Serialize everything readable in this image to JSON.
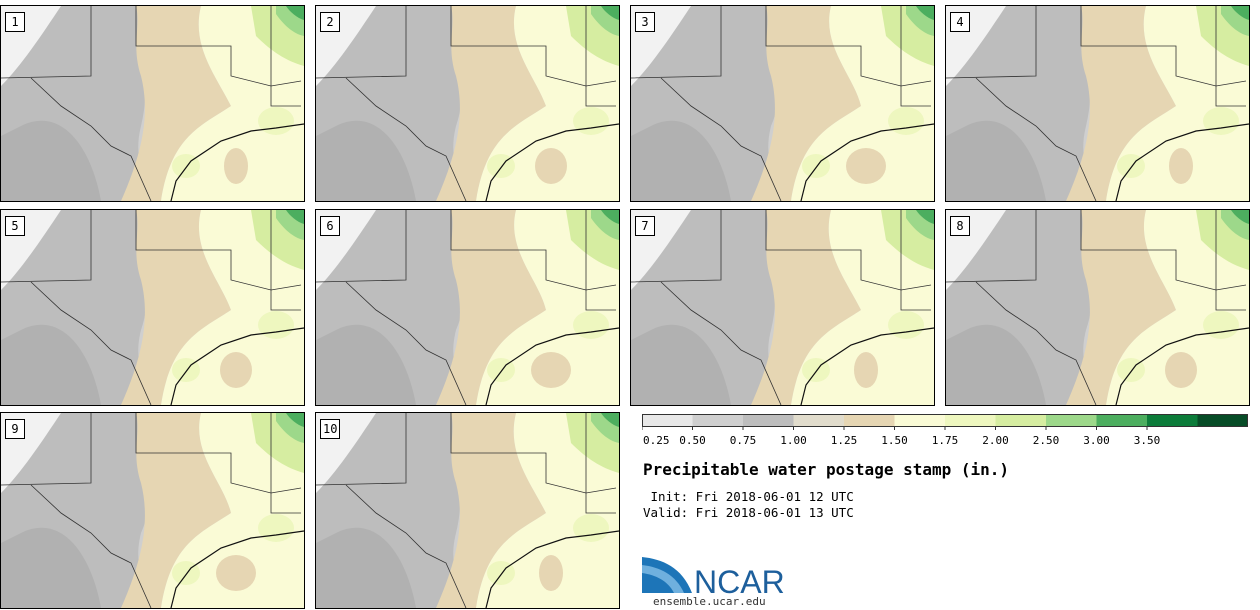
{
  "panels": [
    {
      "label": "1"
    },
    {
      "label": "2"
    },
    {
      "label": "3"
    },
    {
      "label": "4"
    },
    {
      "label": "5"
    },
    {
      "label": "6"
    },
    {
      "label": "7"
    },
    {
      "label": "8"
    },
    {
      "label": "9"
    },
    {
      "label": "10"
    }
  ],
  "legend": {
    "ticks": [
      "0.25",
      "0.50",
      "0.75",
      "1.00",
      "1.25",
      "1.50",
      "1.75",
      "2.00",
      "2.50",
      "3.00",
      "3.50"
    ],
    "colors": [
      "#e8e8e8",
      "#cfcfcf",
      "#bdbdbd",
      "#e1dccc",
      "#e6d6b3",
      "#fafbd6",
      "#eef7bf",
      "#d6eda1",
      "#9dd88a",
      "#4cae5f",
      "#0c7c3a",
      "#074c27",
      "#0c2aa8"
    ]
  },
  "title": "Precipitable water postage stamp (in.)",
  "init": " Init: Fri 2018-06-01 12 UTC",
  "valid": "Valid: Fri 2018-06-01 13 UTC",
  "logo": {
    "text": "NCAR",
    "url": "ensemble.ucar.edu"
  }
}
